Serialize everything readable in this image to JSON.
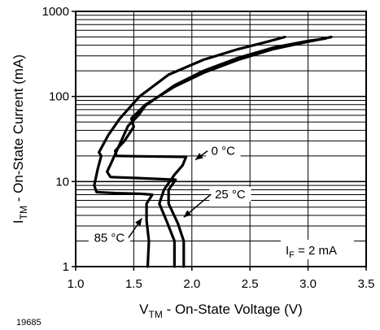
{
  "figure_id": "19685",
  "chart_data": {
    "type": "line",
    "title": "",
    "xlabel": {
      "main": "V",
      "sub": "TM",
      "rest": " - On-State Voltage (V)"
    },
    "ylabel": {
      "main": "I",
      "sub": "TM",
      "rest": " - On-State Current (mA)"
    },
    "x_ticks": [
      "1.0",
      "1.5",
      "2.0",
      "2.5",
      "3.0",
      "3.5"
    ],
    "y_ticks": [
      "1",
      "10",
      "100",
      "1000"
    ],
    "xlim": [
      1.0,
      3.5
    ],
    "ylim": [
      1,
      1000
    ],
    "y_scale": "log",
    "grid": true,
    "condition": {
      "main": "I",
      "sub": "F",
      "rest": " = 2 mA"
    },
    "series": [
      {
        "name": "0 °C",
        "points": [
          [
            1.85,
            1
          ],
          [
            1.85,
            2
          ],
          [
            1.78,
            3.5
          ],
          [
            1.72,
            5.5
          ],
          [
            1.76,
            8
          ],
          [
            1.85,
            12
          ],
          [
            1.92,
            15.5
          ],
          [
            1.95,
            19.5
          ],
          [
            1.55,
            19.8
          ],
          [
            1.35,
            20
          ],
          [
            1.34,
            23
          ],
          [
            1.42,
            30
          ],
          [
            1.5,
            44
          ],
          [
            1.48,
            55
          ],
          [
            1.6,
            80
          ],
          [
            1.85,
            130
          ],
          [
            2.1,
            190
          ],
          [
            2.4,
            270
          ],
          [
            2.7,
            360
          ],
          [
            3.0,
            440
          ],
          [
            3.2,
            500
          ]
        ]
      },
      {
        "name": "25 °C",
        "points": [
          [
            1.93,
            1
          ],
          [
            1.93,
            2
          ],
          [
            1.88,
            3.2
          ],
          [
            1.8,
            5.5
          ],
          [
            1.8,
            8
          ],
          [
            1.86,
            10.5
          ],
          [
            1.52,
            11
          ],
          [
            1.3,
            11.3
          ],
          [
            1.27,
            13
          ],
          [
            1.31,
            17
          ],
          [
            1.45,
            45
          ],
          [
            1.54,
            60
          ],
          [
            1.6,
            78
          ],
          [
            1.85,
            135
          ],
          [
            2.1,
            200
          ],
          [
            2.4,
            285
          ],
          [
            2.7,
            375
          ],
          [
            3.0,
            450
          ],
          [
            3.15,
            480
          ]
        ]
      },
      {
        "name": "85 °C",
        "points": [
          [
            1.62,
            1
          ],
          [
            1.63,
            2
          ],
          [
            1.61,
            3.5
          ],
          [
            1.61,
            5.5
          ],
          [
            1.66,
            7
          ],
          [
            1.55,
            7.2
          ],
          [
            1.35,
            7.3
          ],
          [
            1.18,
            7.5
          ],
          [
            1.16,
            9
          ],
          [
            1.19,
            14
          ],
          [
            1.22,
            20
          ],
          [
            1.2,
            22
          ],
          [
            1.28,
            35
          ],
          [
            1.38,
            55
          ],
          [
            1.55,
            100
          ],
          [
            1.8,
            180
          ],
          [
            2.1,
            270
          ],
          [
            2.4,
            360
          ],
          [
            2.65,
            440
          ],
          [
            2.8,
            500
          ]
        ]
      }
    ],
    "annotations": [
      {
        "text": "0 °C",
        "x": 2.27,
        "y": 21,
        "arrow_to": [
          2.03,
          18
        ]
      },
      {
        "text": "25 °C",
        "x": 2.33,
        "y": 6.5,
        "arrow_to": [
          1.93,
          3.8
        ]
      },
      {
        "text": "85 °C",
        "x": 1.29,
        "y": 2,
        "arrow_to": [
          1.57,
          3.7
        ]
      }
    ]
  }
}
